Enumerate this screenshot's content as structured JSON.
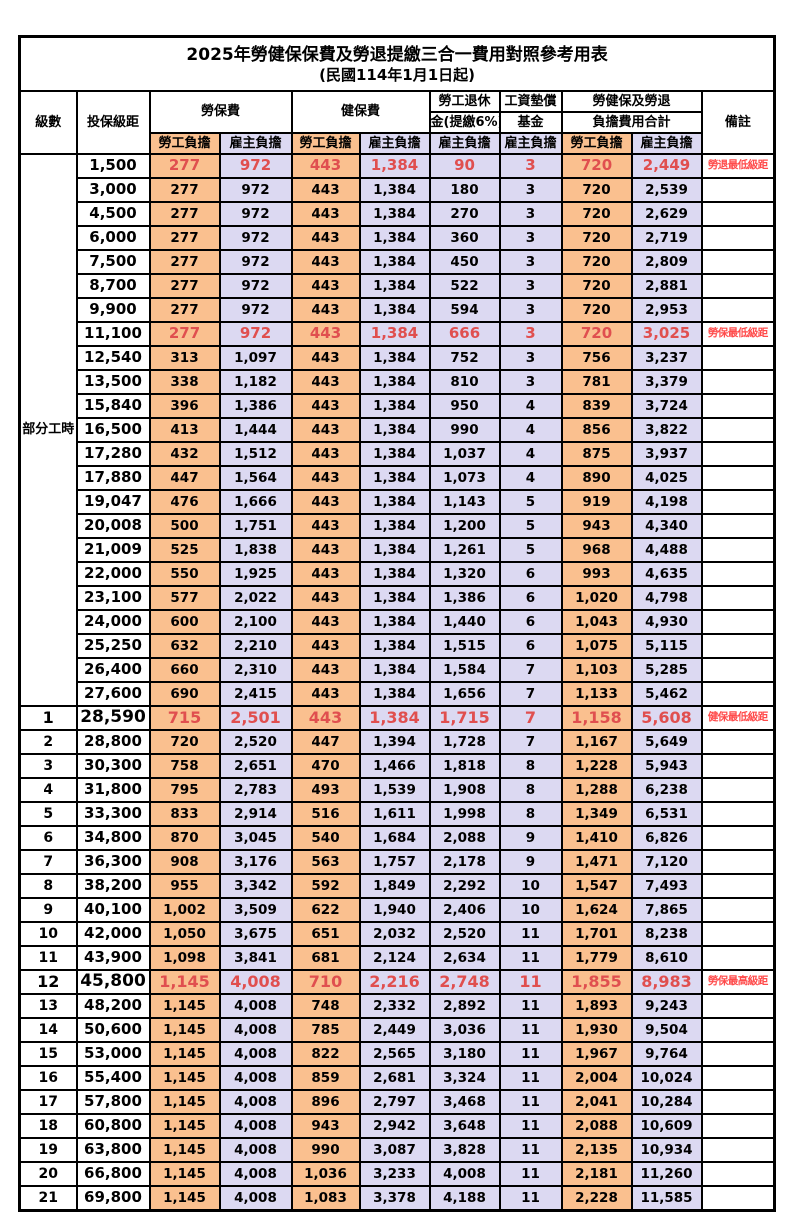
{
  "title": "2025年勞健保保費及勞退提繳三合一費用對照參考用表",
  "subtitle": "(民國114年1月1日起)",
  "header": {
    "level": "級數",
    "bracket": "投保級距",
    "labor_fee": "勞保費",
    "health_fee": "健保費",
    "pension_line1": "勞工退休",
    "pension_line2": "金(提繳6%)",
    "wage_fund_line1": "工資墊償",
    "wage_fund_line2": "基金",
    "total_line1": "勞健保及勞退",
    "total_line2": "負擔費用合計",
    "remark": "備註",
    "employee": "勞工負擔",
    "employer": "雇主負擔"
  },
  "part_time": {
    "label": "部分工時",
    "rows": 23
  },
  "colors": {
    "employee_bg": "#FAC08F",
    "employer_bg": "#DCD9F2",
    "highlight_text": "#E04F4F",
    "note_text": "#FF4B4B"
  },
  "rows": [
    {
      "level": "",
      "bracket": "1,500",
      "v": [
        "277",
        "972",
        "443",
        "1,384",
        "90",
        "3",
        "720",
        "2,449"
      ],
      "note": "勞退最低級距",
      "hl": true,
      "big": false
    },
    {
      "level": "",
      "bracket": "3,000",
      "v": [
        "277",
        "972",
        "443",
        "1,384",
        "180",
        "3",
        "720",
        "2,539"
      ],
      "note": "",
      "hl": false,
      "big": false
    },
    {
      "level": "",
      "bracket": "4,500",
      "v": [
        "277",
        "972",
        "443",
        "1,384",
        "270",
        "3",
        "720",
        "2,629"
      ],
      "note": "",
      "hl": false,
      "big": false
    },
    {
      "level": "",
      "bracket": "6,000",
      "v": [
        "277",
        "972",
        "443",
        "1,384",
        "360",
        "3",
        "720",
        "2,719"
      ],
      "note": "",
      "hl": false,
      "big": false
    },
    {
      "level": "",
      "bracket": "7,500",
      "v": [
        "277",
        "972",
        "443",
        "1,384",
        "450",
        "3",
        "720",
        "2,809"
      ],
      "note": "",
      "hl": false,
      "big": false
    },
    {
      "level": "",
      "bracket": "8,700",
      "v": [
        "277",
        "972",
        "443",
        "1,384",
        "522",
        "3",
        "720",
        "2,881"
      ],
      "note": "",
      "hl": false,
      "big": false
    },
    {
      "level": "",
      "bracket": "9,900",
      "v": [
        "277",
        "972",
        "443",
        "1,384",
        "594",
        "3",
        "720",
        "2,953"
      ],
      "note": "",
      "hl": false,
      "big": false
    },
    {
      "level": "",
      "bracket": "11,100",
      "v": [
        "277",
        "972",
        "443",
        "1,384",
        "666",
        "3",
        "720",
        "3,025"
      ],
      "note": "勞保最低級距",
      "hl": true,
      "big": false
    },
    {
      "level": "",
      "bracket": "12,540",
      "v": [
        "313",
        "1,097",
        "443",
        "1,384",
        "752",
        "3",
        "756",
        "3,237"
      ],
      "note": "",
      "hl": false,
      "big": false
    },
    {
      "level": "",
      "bracket": "13,500",
      "v": [
        "338",
        "1,182",
        "443",
        "1,384",
        "810",
        "3",
        "781",
        "3,379"
      ],
      "note": "",
      "hl": false,
      "big": false
    },
    {
      "level": "",
      "bracket": "15,840",
      "v": [
        "396",
        "1,386",
        "443",
        "1,384",
        "950",
        "4",
        "839",
        "3,724"
      ],
      "note": "",
      "hl": false,
      "big": false
    },
    {
      "level": "",
      "bracket": "16,500",
      "v": [
        "413",
        "1,444",
        "443",
        "1,384",
        "990",
        "4",
        "856",
        "3,822"
      ],
      "note": "",
      "hl": false,
      "big": false
    },
    {
      "level": "",
      "bracket": "17,280",
      "v": [
        "432",
        "1,512",
        "443",
        "1,384",
        "1,037",
        "4",
        "875",
        "3,937"
      ],
      "note": "",
      "hl": false,
      "big": false
    },
    {
      "level": "",
      "bracket": "17,880",
      "v": [
        "447",
        "1,564",
        "443",
        "1,384",
        "1,073",
        "4",
        "890",
        "4,025"
      ],
      "note": "",
      "hl": false,
      "big": false
    },
    {
      "level": "",
      "bracket": "19,047",
      "v": [
        "476",
        "1,666",
        "443",
        "1,384",
        "1,143",
        "5",
        "919",
        "4,198"
      ],
      "note": "",
      "hl": false,
      "big": false
    },
    {
      "level": "",
      "bracket": "20,008",
      "v": [
        "500",
        "1,751",
        "443",
        "1,384",
        "1,200",
        "5",
        "943",
        "4,340"
      ],
      "note": "",
      "hl": false,
      "big": false
    },
    {
      "level": "",
      "bracket": "21,009",
      "v": [
        "525",
        "1,838",
        "443",
        "1,384",
        "1,261",
        "5",
        "968",
        "4,488"
      ],
      "note": "",
      "hl": false,
      "big": false
    },
    {
      "level": "",
      "bracket": "22,000",
      "v": [
        "550",
        "1,925",
        "443",
        "1,384",
        "1,320",
        "6",
        "993",
        "4,635"
      ],
      "note": "",
      "hl": false,
      "big": false
    },
    {
      "level": "",
      "bracket": "23,100",
      "v": [
        "577",
        "2,022",
        "443",
        "1,384",
        "1,386",
        "6",
        "1,020",
        "4,798"
      ],
      "note": "",
      "hl": false,
      "big": false
    },
    {
      "level": "",
      "bracket": "24,000",
      "v": [
        "600",
        "2,100",
        "443",
        "1,384",
        "1,440",
        "6",
        "1,043",
        "4,930"
      ],
      "note": "",
      "hl": false,
      "big": false
    },
    {
      "level": "",
      "bracket": "25,250",
      "v": [
        "632",
        "2,210",
        "443",
        "1,384",
        "1,515",
        "6",
        "1,075",
        "5,115"
      ],
      "note": "",
      "hl": false,
      "big": false
    },
    {
      "level": "",
      "bracket": "26,400",
      "v": [
        "660",
        "2,310",
        "443",
        "1,384",
        "1,584",
        "7",
        "1,103",
        "5,285"
      ],
      "note": "",
      "hl": false,
      "big": false
    },
    {
      "level": "",
      "bracket": "27,600",
      "v": [
        "690",
        "2,415",
        "443",
        "1,384",
        "1,656",
        "7",
        "1,133",
        "5,462"
      ],
      "note": "",
      "hl": false,
      "big": false
    },
    {
      "level": "1",
      "bracket": "28,590",
      "v": [
        "715",
        "2,501",
        "443",
        "1,384",
        "1,715",
        "7",
        "1,158",
        "5,608"
      ],
      "note": "健保最低級距",
      "hl": true,
      "big": true
    },
    {
      "level": "2",
      "bracket": "28,800",
      "v": [
        "720",
        "2,520",
        "447",
        "1,394",
        "1,728",
        "7",
        "1,167",
        "5,649"
      ],
      "note": "",
      "hl": false,
      "big": false
    },
    {
      "level": "3",
      "bracket": "30,300",
      "v": [
        "758",
        "2,651",
        "470",
        "1,466",
        "1,818",
        "8",
        "1,228",
        "5,943"
      ],
      "note": "",
      "hl": false,
      "big": false
    },
    {
      "level": "4",
      "bracket": "31,800",
      "v": [
        "795",
        "2,783",
        "493",
        "1,539",
        "1,908",
        "8",
        "1,288",
        "6,238"
      ],
      "note": "",
      "hl": false,
      "big": false
    },
    {
      "level": "5",
      "bracket": "33,300",
      "v": [
        "833",
        "2,914",
        "516",
        "1,611",
        "1,998",
        "8",
        "1,349",
        "6,531"
      ],
      "note": "",
      "hl": false,
      "big": false
    },
    {
      "level": "6",
      "bracket": "34,800",
      "v": [
        "870",
        "3,045",
        "540",
        "1,684",
        "2,088",
        "9",
        "1,410",
        "6,826"
      ],
      "note": "",
      "hl": false,
      "big": false
    },
    {
      "level": "7",
      "bracket": "36,300",
      "v": [
        "908",
        "3,176",
        "563",
        "1,757",
        "2,178",
        "9",
        "1,471",
        "7,120"
      ],
      "note": "",
      "hl": false,
      "big": false
    },
    {
      "level": "8",
      "bracket": "38,200",
      "v": [
        "955",
        "3,342",
        "592",
        "1,849",
        "2,292",
        "10",
        "1,547",
        "7,493"
      ],
      "note": "",
      "hl": false,
      "big": false
    },
    {
      "level": "9",
      "bracket": "40,100",
      "v": [
        "1,002",
        "3,509",
        "622",
        "1,940",
        "2,406",
        "10",
        "1,624",
        "7,865"
      ],
      "note": "",
      "hl": false,
      "big": false
    },
    {
      "level": "10",
      "bracket": "42,000",
      "v": [
        "1,050",
        "3,675",
        "651",
        "2,032",
        "2,520",
        "11",
        "1,701",
        "8,238"
      ],
      "note": "",
      "hl": false,
      "big": false
    },
    {
      "level": "11",
      "bracket": "43,900",
      "v": [
        "1,098",
        "3,841",
        "681",
        "2,124",
        "2,634",
        "11",
        "1,779",
        "8,610"
      ],
      "note": "",
      "hl": false,
      "big": false
    },
    {
      "level": "12",
      "bracket": "45,800",
      "v": [
        "1,145",
        "4,008",
        "710",
        "2,216",
        "2,748",
        "11",
        "1,855",
        "8,983"
      ],
      "note": "勞保最高級距",
      "hl": true,
      "big": true
    },
    {
      "level": "13",
      "bracket": "48,200",
      "v": [
        "1,145",
        "4,008",
        "748",
        "2,332",
        "2,892",
        "11",
        "1,893",
        "9,243"
      ],
      "note": "",
      "hl": false,
      "big": false
    },
    {
      "level": "14",
      "bracket": "50,600",
      "v": [
        "1,145",
        "4,008",
        "785",
        "2,449",
        "3,036",
        "11",
        "1,930",
        "9,504"
      ],
      "note": "",
      "hl": false,
      "big": false
    },
    {
      "level": "15",
      "bracket": "53,000",
      "v": [
        "1,145",
        "4,008",
        "822",
        "2,565",
        "3,180",
        "11",
        "1,967",
        "9,764"
      ],
      "note": "",
      "hl": false,
      "big": false
    },
    {
      "level": "16",
      "bracket": "55,400",
      "v": [
        "1,145",
        "4,008",
        "859",
        "2,681",
        "3,324",
        "11",
        "2,004",
        "10,024"
      ],
      "note": "",
      "hl": false,
      "big": false
    },
    {
      "level": "17",
      "bracket": "57,800",
      "v": [
        "1,145",
        "4,008",
        "896",
        "2,797",
        "3,468",
        "11",
        "2,041",
        "10,284"
      ],
      "note": "",
      "hl": false,
      "big": false
    },
    {
      "level": "18",
      "bracket": "60,800",
      "v": [
        "1,145",
        "4,008",
        "943",
        "2,942",
        "3,648",
        "11",
        "2,088",
        "10,609"
      ],
      "note": "",
      "hl": false,
      "big": false
    },
    {
      "level": "19",
      "bracket": "63,800",
      "v": [
        "1,145",
        "4,008",
        "990",
        "3,087",
        "3,828",
        "11",
        "2,135",
        "10,934"
      ],
      "note": "",
      "hl": false,
      "big": false
    },
    {
      "level": "20",
      "bracket": "66,800",
      "v": [
        "1,145",
        "4,008",
        "1,036",
        "3,233",
        "4,008",
        "11",
        "2,181",
        "11,260"
      ],
      "note": "",
      "hl": false,
      "big": false
    },
    {
      "level": "21",
      "bracket": "69,800",
      "v": [
        "1,145",
        "4,008",
        "1,083",
        "3,378",
        "4,188",
        "11",
        "2,228",
        "11,585"
      ],
      "note": "",
      "hl": false,
      "big": false
    }
  ]
}
